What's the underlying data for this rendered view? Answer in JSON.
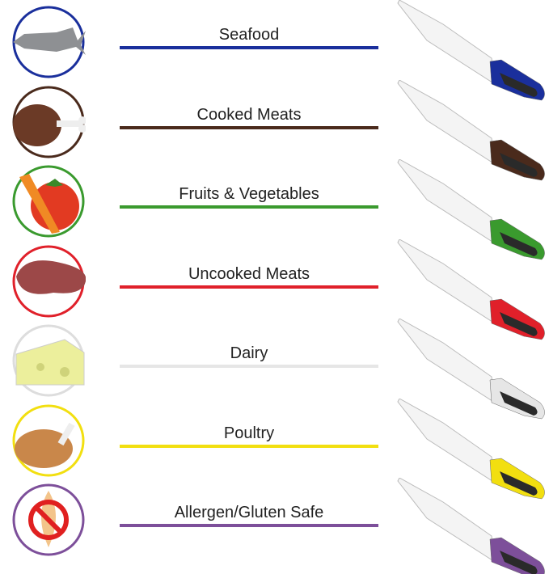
{
  "categories": [
    {
      "label": "Seafood",
      "color": "#1a2f9c",
      "icon": "fish-icon"
    },
    {
      "label": "Cooked Meats",
      "color": "#4a2a1c",
      "icon": "ham-icon"
    },
    {
      "label": "Fruits & Vegetables",
      "color": "#3a9a2e",
      "icon": "tomato-carrot-icon"
    },
    {
      "label": "Uncooked Meats",
      "color": "#e0202a",
      "icon": "steak-icon"
    },
    {
      "label": "Dairy",
      "color": "#e6e6e6",
      "icon": "cheese-icon"
    },
    {
      "label": "Poultry",
      "color": "#f2df10",
      "icon": "turkey-icon"
    },
    {
      "label": "Allergen/Gluten Safe",
      "color": "#7d4f9a",
      "icon": "no-wheat-icon"
    }
  ]
}
